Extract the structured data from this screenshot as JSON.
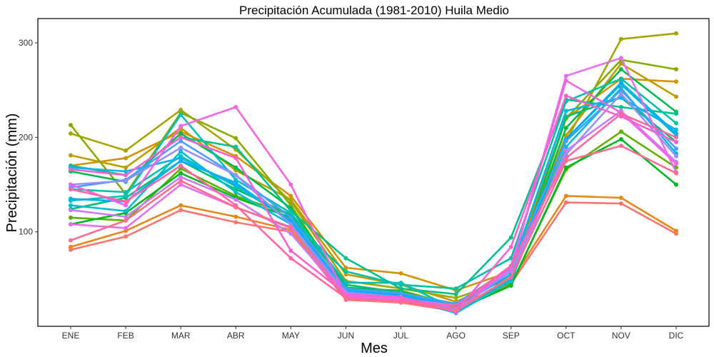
{
  "chart_data": {
    "type": "line",
    "title": "Precipitación Acumulada (1981-2010)  Huila Medio",
    "xlabel": "Mes",
    "ylabel": "Precipitación  (mm)",
    "categories": [
      "ENE",
      "FEB",
      "MAR",
      "ABR",
      "MAY",
      "JUN",
      "JUL",
      "AGO",
      "SEP",
      "OCT",
      "NOV",
      "DIC"
    ],
    "ylim": [
      0,
      325
    ],
    "yticks": [
      100,
      200,
      300
    ],
    "grid": false,
    "legend": "none",
    "series": [
      {
        "color": "#F8766D",
        "values": [
          81,
          95,
          123,
          110,
          100,
          28,
          25,
          16,
          45,
          131,
          130,
          98
        ]
      },
      {
        "color": "#E7861B",
        "values": [
          84,
          101,
          128,
          116,
          102,
          30,
          27,
          18,
          48,
          138,
          136,
          101
        ]
      },
      {
        "color": "#D39200",
        "values": [
          170,
          178,
          206,
          180,
          138,
          62,
          56,
          38,
          58,
          220,
          262,
          259
        ]
      },
      {
        "color": "#BE9C00",
        "values": [
          181,
          168,
          210,
          165,
          134,
          55,
          44,
          26,
          52,
          202,
          278,
          243
        ]
      },
      {
        "color": "#A3A500",
        "values": [
          204,
          186,
          229,
          187,
          132,
          48,
          40,
          30,
          50,
          196,
          304,
          310
        ]
      },
      {
        "color": "#86AC00",
        "values": [
          213,
          140,
          226,
          199,
          128,
          40,
          38,
          22,
          46,
          220,
          282,
          272
        ]
      },
      {
        "color": "#5DB200",
        "values": [
          115,
          112,
          167,
          138,
          118,
          37,
          33,
          18,
          44,
          166,
          206,
          168
        ]
      },
      {
        "color": "#00B81F",
        "values": [
          108,
          120,
          162,
          136,
          115,
          35,
          32,
          17,
          43,
          168,
          198,
          150
        ]
      },
      {
        "color": "#00BB4E",
        "values": [
          164,
          153,
          204,
          168,
          125,
          41,
          37,
          20,
          47,
          210,
          272,
          227
        ]
      },
      {
        "color": "#00BE70",
        "values": [
          124,
          136,
          175,
          145,
          118,
          44,
          36,
          19,
          48,
          222,
          242,
          195
        ]
      },
      {
        "color": "#00C08D",
        "values": [
          170,
          160,
          200,
          190,
          122,
          72,
          40,
          34,
          94,
          240,
          232,
          225
        ]
      },
      {
        "color": "#00C1A7",
        "values": [
          145,
          142,
          180,
          148,
          112,
          58,
          44,
          40,
          72,
          238,
          262,
          215
        ]
      },
      {
        "color": "#00BFBF",
        "values": [
          133,
          138,
          224,
          155,
          120,
          46,
          46,
          18,
          50,
          198,
          256,
          202
        ]
      },
      {
        "color": "#00BCD6",
        "values": [
          128,
          122,
          185,
          142,
          108,
          34,
          30,
          14,
          48,
          190,
          252,
          183
        ]
      },
      {
        "color": "#00B6EA",
        "values": [
          168,
          164,
          178,
          150,
          112,
          38,
          34,
          21,
          60,
          228,
          242,
          208
        ]
      },
      {
        "color": "#00ADFA",
        "values": [
          135,
          132,
          175,
          152,
          110,
          36,
          33,
          20,
          55,
          198,
          258,
          204
        ]
      },
      {
        "color": "#47A0FF",
        "values": [
          147,
          155,
          196,
          160,
          115,
          40,
          35,
          24,
          62,
          196,
          250,
          188
        ]
      },
      {
        "color": "#9590FF",
        "values": [
          150,
          154,
          189,
          160,
          108,
          36,
          31,
          18,
          58,
          182,
          246,
          180
        ]
      },
      {
        "color": "#C77CFF",
        "values": [
          123,
          116,
          158,
          134,
          98,
          31,
          28,
          16,
          52,
          186,
          228,
          174
        ]
      },
      {
        "color": "#E56EF1",
        "values": [
          108,
          104,
          150,
          126,
          104,
          33,
          29,
          22,
          60,
          265,
          284,
          163
        ]
      },
      {
        "color": "#F564E3",
        "values": [
          150,
          128,
          212,
          232,
          150,
          32,
          30,
          15,
          64,
          260,
          226,
          172
        ]
      },
      {
        "color": "#FD61D1",
        "values": [
          166,
          160,
          200,
          178,
          80,
          34,
          31,
          16,
          84,
          244,
          222,
          195
        ]
      },
      {
        "color": "#FF67A4",
        "values": [
          145,
          132,
          170,
          128,
          72,
          30,
          27,
          21,
          64,
          178,
          225,
          200
        ]
      },
      {
        "color": "#FF6C91",
        "values": [
          91,
          112,
          154,
          126,
          105,
          29,
          26,
          17,
          52,
          175,
          191,
          162
        ]
      }
    ]
  }
}
